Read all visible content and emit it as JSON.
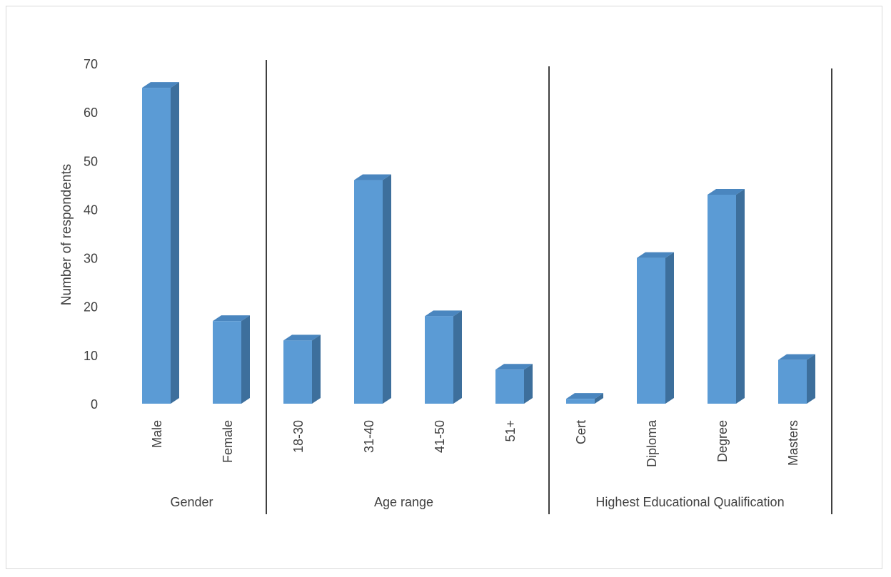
{
  "chart_data": {
    "type": "bar",
    "ylabel": "Number of respondents",
    "ylim": [
      0,
      70
    ],
    "yticks": [
      "0",
      "10",
      "20",
      "30",
      "40",
      "50",
      "60",
      "70"
    ],
    "grid": false,
    "style": "3d-column",
    "bar_color": "#5b9bd5",
    "bar_side_color": "#3d6f9c",
    "bar_top_color": "#4a86bf",
    "groups": [
      {
        "label": "Gender",
        "categories": [
          "Male",
          "Female"
        ],
        "values": [
          65,
          17
        ]
      },
      {
        "label": "Age range",
        "categories": [
          "18-30",
          "31-40",
          "41-50",
          "51+"
        ],
        "values": [
          13,
          46,
          18,
          7
        ]
      },
      {
        "label": "Highest Educational Qualification",
        "categories": [
          "Cert",
          "Diploma",
          "Degree",
          "Masters"
        ],
        "values": [
          1,
          30,
          43,
          9
        ]
      }
    ]
  }
}
